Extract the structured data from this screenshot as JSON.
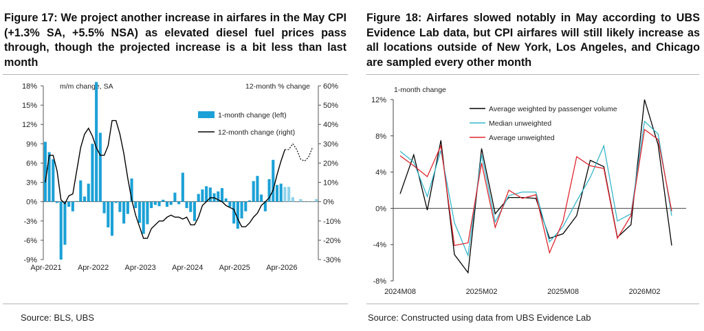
{
  "left": {
    "title": "Figure 17: We project another increase in airfares in the May CPI (+1.3% SA, +5.5% NSA) as elevated diesel fuel prices pass through, though the projected increase is a bit less than last month",
    "source": "Source: BLS, UBS"
  },
  "right": {
    "title": "Figure 18: Airfares slowed notably in May according to UBS Evidence Lab data, but CPI airfares will still likely increase as all locations outside of New York, Los Angeles, and Chicago are sampled every other month",
    "source": "Source: Constructed using data from UBS Evidence Lab"
  },
  "chart_data": [
    {
      "type": "bar+line",
      "left_axis_label": "m/m change, SA",
      "right_axis_label": "12-month % change",
      "x_tick_labels": [
        "Apr-2021",
        "Apr-2022",
        "Apr-2023",
        "Apr-2024",
        "Apr-2025",
        "Apr-2026"
      ],
      "y_left_ticks": [
        "18%",
        "15%",
        "12%",
        "9%",
        "6%",
        "3%",
        "0%",
        "-3%",
        "-6%",
        "-9%"
      ],
      "y_right_ticks": [
        "60%",
        "50%",
        "40%",
        "30%",
        "20%",
        "10%",
        "0%",
        "-10%",
        "-20%",
        "-30%"
      ],
      "ylim_left": [
        -9,
        18
      ],
      "ylim_right": [
        -30,
        60
      ],
      "series": [
        {
          "name": "1-month change (left)",
          "color": "#1ba1d6",
          "values": [
            9.3,
            7.7,
            6.6,
            -0.2,
            -9.0,
            -6.7,
            -0.8,
            -1.5,
            0.1,
            3.3,
            0.8,
            2.8,
            9.0,
            18.6,
            10.7,
            -1.8,
            -4.0,
            -5.3,
            -0.2,
            -1.6,
            -3.4,
            -1.9,
            3.6,
            -1.0,
            -3.3,
            -5.0,
            -3.5,
            -1.0,
            -0.5,
            -0.7,
            0.3,
            -0.8,
            -0.5,
            1.4,
            -0.4,
            4.5,
            -1.0,
            -1.6,
            -3.0,
            1.2,
            1.9,
            2.4,
            2.2,
            1.3,
            1.6,
            2.1,
            0.5,
            -0.8,
            -3.4,
            -4.2,
            -2.6,
            -1.5,
            0.2,
            3.2,
            4.0,
            1.1,
            -1.5,
            3.5,
            6.5,
            2.6,
            2.8
          ]
        },
        {
          "name": "projected 1-month change (left)",
          "color": "#8fd3ea",
          "values": [
            2.3,
            2.3,
            0.7,
            0.0,
            0.4,
            0.0,
            0.0,
            0.0,
            0.4
          ]
        },
        {
          "name": "12-month change (right)",
          "color": "#000000",
          "values": [
            10,
            24,
            24,
            16,
            1,
            -1,
            3,
            4,
            16,
            28,
            35,
            38,
            34,
            28,
            24,
            24,
            29,
            42,
            42,
            35,
            25,
            12,
            1,
            -7,
            -13,
            -19,
            -19,
            -14,
            -12,
            -10,
            -10,
            -8,
            -7,
            -8,
            -8,
            -9,
            -8,
            -12,
            -12,
            -8,
            -2,
            0,
            2,
            2,
            1,
            0,
            -2,
            -3,
            -4,
            -9,
            -13,
            -13,
            -11,
            -8,
            -6,
            -2,
            0,
            2,
            6,
            14,
            21,
            27
          ]
        },
        {
          "name": "projected 12-month change (right)",
          "color": "#000000",
          "values": [
            27,
            30,
            27,
            22,
            21,
            23,
            28
          ]
        }
      ],
      "legend_position": "top-right",
      "grid": false
    },
    {
      "type": "line",
      "ylabel": "1-month change",
      "x_tick_labels": [
        "2024M08",
        "2025M02",
        "2025M08",
        "2026M02"
      ],
      "y_ticks": [
        "12%",
        "8%",
        "4%",
        "0%",
        "-4%",
        "-8%"
      ],
      "ylim": [
        -8,
        12
      ],
      "series": [
        {
          "name": "Average weighted by passenger volume",
          "color": "#000000",
          "values": [
            1.6,
            5.9,
            -0.2,
            7.5,
            -5.1,
            -7.1,
            6.6,
            -0.6,
            1.2,
            1.2,
            1.1,
            -3.3,
            -2.8,
            -0.8,
            5.3,
            4.6,
            -3.2,
            -1.8,
            12.0,
            7.0,
            -4.1
          ]
        },
        {
          "name": "Median unweighted",
          "color": "#35b6cc",
          "values": [
            6.3,
            5.1,
            1.3,
            6.4,
            -1.6,
            -5.2,
            5.9,
            -1.5,
            1.4,
            1.8,
            1.8,
            -3.7,
            -2.0,
            0.8,
            3.4,
            6.9,
            -1.4,
            -0.6,
            9.6,
            8.2,
            -0.8
          ]
        },
        {
          "name": "Average unweighted",
          "color": "#e0262e",
          "values": [
            5.8,
            4.7,
            3.5,
            6.9,
            -4.1,
            -3.8,
            5.0,
            -2.1,
            2.0,
            1.1,
            1.5,
            -4.9,
            -1.4,
            5.7,
            4.7,
            4.4,
            -3.3,
            -0.8,
            8.7,
            7.6,
            -0.3
          ]
        }
      ],
      "legend_position": "top-left",
      "grid": false
    }
  ]
}
